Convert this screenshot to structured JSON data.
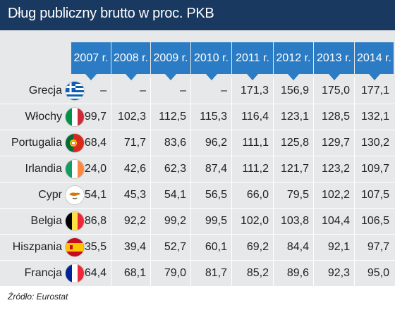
{
  "title": "Dług publiczny brutto w proc. PKB",
  "source": "Źródło: Eurostat",
  "chart_data": {
    "type": "table",
    "columns": [
      "2007 r.",
      "2008 r.",
      "2009 r.",
      "2010 r.",
      "2011 r.",
      "2012 r.",
      "2013 r.",
      "2014 r."
    ],
    "rows": [
      {
        "country": "Grecja",
        "flag": "flag-greece-icon",
        "values": [
          "–",
          "–",
          "–",
          "–",
          "171,3",
          "156,9",
          "175,0",
          "177,1"
        ]
      },
      {
        "country": "Włochy",
        "flag": "flag-italy-icon",
        "values": [
          "99,7",
          "102,3",
          "112,5",
          "115,3",
          "116,4",
          "123,1",
          "128,5",
          "132,1"
        ]
      },
      {
        "country": "Portugalia",
        "flag": "flag-portugal-icon",
        "values": [
          "68,4",
          "71,7",
          "83,6",
          "96,2",
          "111,1",
          "125,8",
          "129,7",
          "130,2"
        ]
      },
      {
        "country": "Irlandia",
        "flag": "flag-ireland-icon",
        "values": [
          "24,0",
          "42,6",
          "62,3",
          "87,4",
          "111,2",
          "121,7",
          "123,2",
          "109,7"
        ]
      },
      {
        "country": "Cypr",
        "flag": "flag-cyprus-icon",
        "values": [
          "54,1",
          "45,3",
          "54,1",
          "56,5",
          "66,0",
          "79,5",
          "102,2",
          "107,5"
        ]
      },
      {
        "country": "Belgia",
        "flag": "flag-belgium-icon",
        "values": [
          "86,8",
          "92,2",
          "99,2",
          "99,5",
          "102,0",
          "103,8",
          "104,4",
          "106,5"
        ]
      },
      {
        "country": "Hiszpania",
        "flag": "flag-spain-icon",
        "values": [
          "35,5",
          "39,4",
          "52,7",
          "60,1",
          "69,2",
          "84,4",
          "92,1",
          "97,7"
        ]
      },
      {
        "country": "Francja",
        "flag": "flag-france-icon",
        "values": [
          "64,4",
          "68,1",
          "79,0",
          "81,7",
          "85,2",
          "89,6",
          "92,3",
          "95,0"
        ]
      }
    ]
  },
  "colors": {
    "header_bg": "#1a3961",
    "tab_bg": "#2b7cc4",
    "table_bg": "#e6e8e9"
  }
}
